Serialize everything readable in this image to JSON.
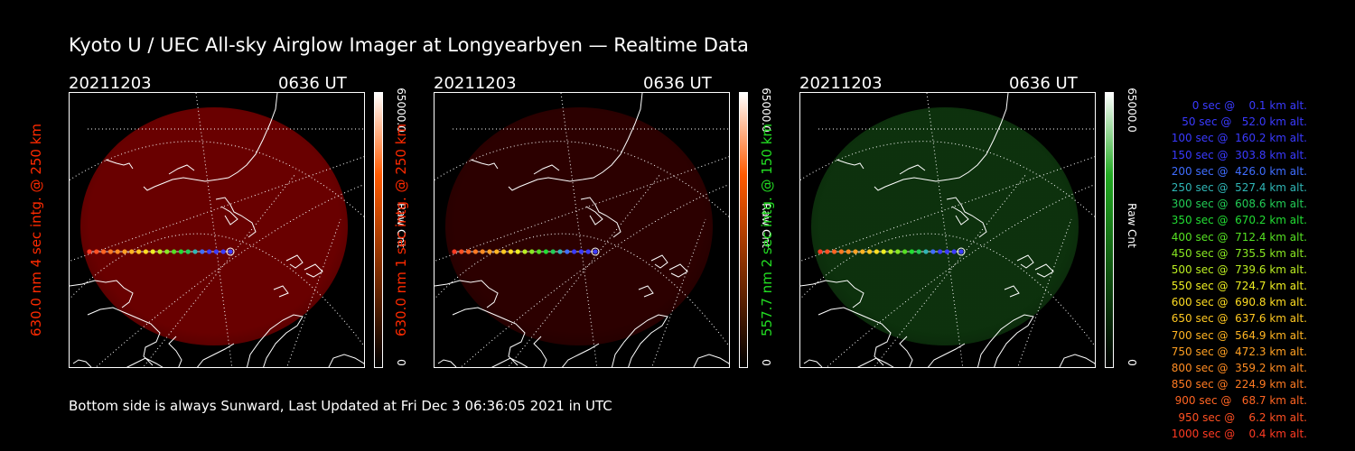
{
  "header": {
    "title": "Kyoto U / UEC All-sky Airglow Imager at Longyearbyen — Realtime Data"
  },
  "panels": [
    {
      "date": "20211203",
      "time": "0636 UT",
      "channel_label": "630.0 nm 4 sec intg. @ 250 km",
      "channel_color": "#ff2a00",
      "glow_color": "#8c0000",
      "glow_opacity": 0.75,
      "colorbar_max": "65000.0",
      "colorbar_unit": "Raw Cnt",
      "colorbar_min": "0",
      "colorbar_top_color": "#ffffff",
      "colorbar_mid_color": "#ff5a00",
      "colorbar_bottom_color": "#000000"
    },
    {
      "date": "20211203",
      "time": "0636 UT",
      "channel_label": "630.0 nm 1 sec intg. @ 250 km",
      "channel_color": "#ff2a00",
      "glow_color": "#3a0000",
      "glow_opacity": 0.75,
      "colorbar_max": "65000.0",
      "colorbar_unit": "Raw Cnt",
      "colorbar_min": "0",
      "colorbar_top_color": "#ffffff",
      "colorbar_mid_color": "#ff5a00",
      "colorbar_bottom_color": "#000000"
    },
    {
      "date": "20211203",
      "time": "0636 UT",
      "channel_label": "557.7 nm 2 sec intg. @ 150 km",
      "channel_color": "#22dd22",
      "glow_color": "#0f3a0f",
      "glow_opacity": 0.85,
      "colorbar_max": "65000.0",
      "colorbar_unit": "Raw Cnt",
      "colorbar_min": "0",
      "colorbar_top_color": "#ffffff",
      "colorbar_mid_color": "#22aa22",
      "colorbar_bottom_color": "#000000"
    }
  ],
  "legend": [
    {
      "text": "0 sec @    0.1 km alt.",
      "color": "#3a3aff"
    },
    {
      "text": "50 sec @   52.0 km alt.",
      "color": "#3a3aff"
    },
    {
      "text": "100 sec @  160.2 km alt.",
      "color": "#3a3aff"
    },
    {
      "text": "150 sec @  303.8 km alt.",
      "color": "#3a3aff"
    },
    {
      "text": "200 sec @  426.0 km alt.",
      "color": "#3f6dff"
    },
    {
      "text": "250 sec @  527.4 km alt.",
      "color": "#2fb5b5"
    },
    {
      "text": "300 sec @  608.6 km alt.",
      "color": "#22cc55"
    },
    {
      "text": "350 sec @  670.2 km alt.",
      "color": "#22dd33"
    },
    {
      "text": "400 sec @  712.4 km alt.",
      "color": "#55e022"
    },
    {
      "text": "450 sec @  735.5 km alt.",
      "color": "#88e822"
    },
    {
      "text": "500 sec @  739.6 km alt.",
      "color": "#bbee22"
    },
    {
      "text": "550 sec @  724.7 km alt.",
      "color": "#eeee22"
    },
    {
      "text": "600 sec @  690.8 km alt.",
      "color": "#ffdd22"
    },
    {
      "text": "650 sec @  637.6 km alt.",
      "color": "#ffc822"
    },
    {
      "text": "700 sec @  564.9 km alt.",
      "color": "#ffb422"
    },
    {
      "text": "750 sec @  472.3 km alt.",
      "color": "#ffa022"
    },
    {
      "text": "800 sec @  359.2 km alt.",
      "color": "#ff8c22"
    },
    {
      "text": "850 sec @  224.9 km alt.",
      "color": "#ff7a22"
    },
    {
      "text": "900 sec @   68.7 km alt.",
      "color": "#ff6422"
    },
    {
      "text": "950 sec @    6.2 km alt.",
      "color": "#ff5022"
    },
    {
      "text": "1000 sec @    0.4 km alt.",
      "color": "#ff3a22"
    }
  ],
  "footer": {
    "text": "Bottom side is always Sunward, Last Updated at Fri Dec  3 06:36:05 2021 in UTC"
  }
}
